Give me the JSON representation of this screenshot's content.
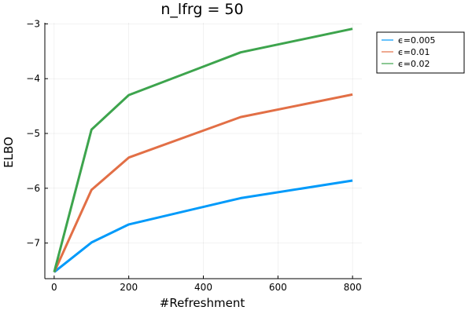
{
  "chart_data": {
    "type": "line",
    "title": "n_lfrg = 50",
    "xlabel": "#Refreshment",
    "ylabel": "ELBO",
    "x": [
      0,
      100,
      200,
      500,
      800
    ],
    "xlim": [
      -25,
      825
    ],
    "ylim": [
      -7.65,
      -2.98
    ],
    "xticks": [
      0,
      200,
      400,
      600,
      800
    ],
    "yticks": [
      -7,
      -6,
      -5,
      -4,
      -3
    ],
    "xtick_labels": [
      "0",
      "200",
      "400",
      "600",
      "800"
    ],
    "ytick_labels": [
      "−7",
      "−6",
      "−5",
      "−4",
      "−3"
    ],
    "grid": true,
    "legend_position": "top-right",
    "series": [
      {
        "name": "ϵ=0.005",
        "color": "#009AFA",
        "values": [
          -7.53,
          -6.99,
          -6.66,
          -6.18,
          -5.86
        ]
      },
      {
        "name": "ϵ=0.01",
        "color": "#E26F46",
        "values": [
          -7.53,
          -6.03,
          -5.44,
          -4.7,
          -4.29
        ]
      },
      {
        "name": "ϵ=0.02",
        "color": "#3DA44D",
        "values": [
          -7.53,
          -4.93,
          -4.3,
          -3.52,
          -3.09
        ]
      }
    ]
  }
}
